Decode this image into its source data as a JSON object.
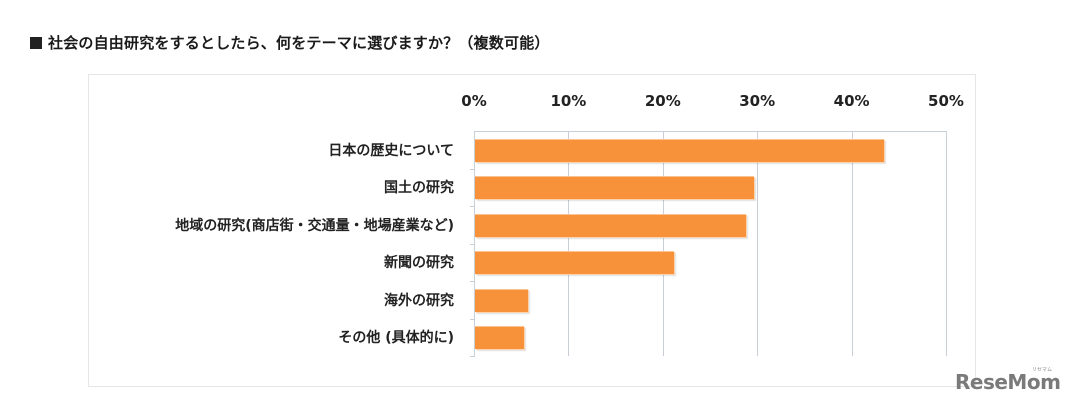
{
  "title": "社会の自由研究をするとしたら、何をテーマに選びますか？（複数可能）",
  "chart_data": {
    "type": "bar",
    "orientation": "horizontal",
    "title": "社会の自由研究をするとしたら、何をテーマに選びますか？（複数可能）",
    "xlabel": "",
    "ylabel": "",
    "xlim": [
      0,
      50
    ],
    "x_ticks": [
      "0%",
      "10%",
      "20%",
      "30%",
      "40%",
      "50%"
    ],
    "axis_position": "top",
    "grid": true,
    "legend": null,
    "categories": [
      "日本の歴史について",
      "国土の研究",
      "地域の研究(商店街・交通量・地場産業など)",
      "新聞の研究",
      "海外の研究",
      "その他 (具体的に)"
    ],
    "values": [
      43.3,
      29.6,
      28.7,
      21.1,
      5.6,
      5.2
    ],
    "unit": "%",
    "bar_color": "#f7923a"
  },
  "logo": {
    "text": "ReseMom",
    "sub": "リセマム"
  }
}
